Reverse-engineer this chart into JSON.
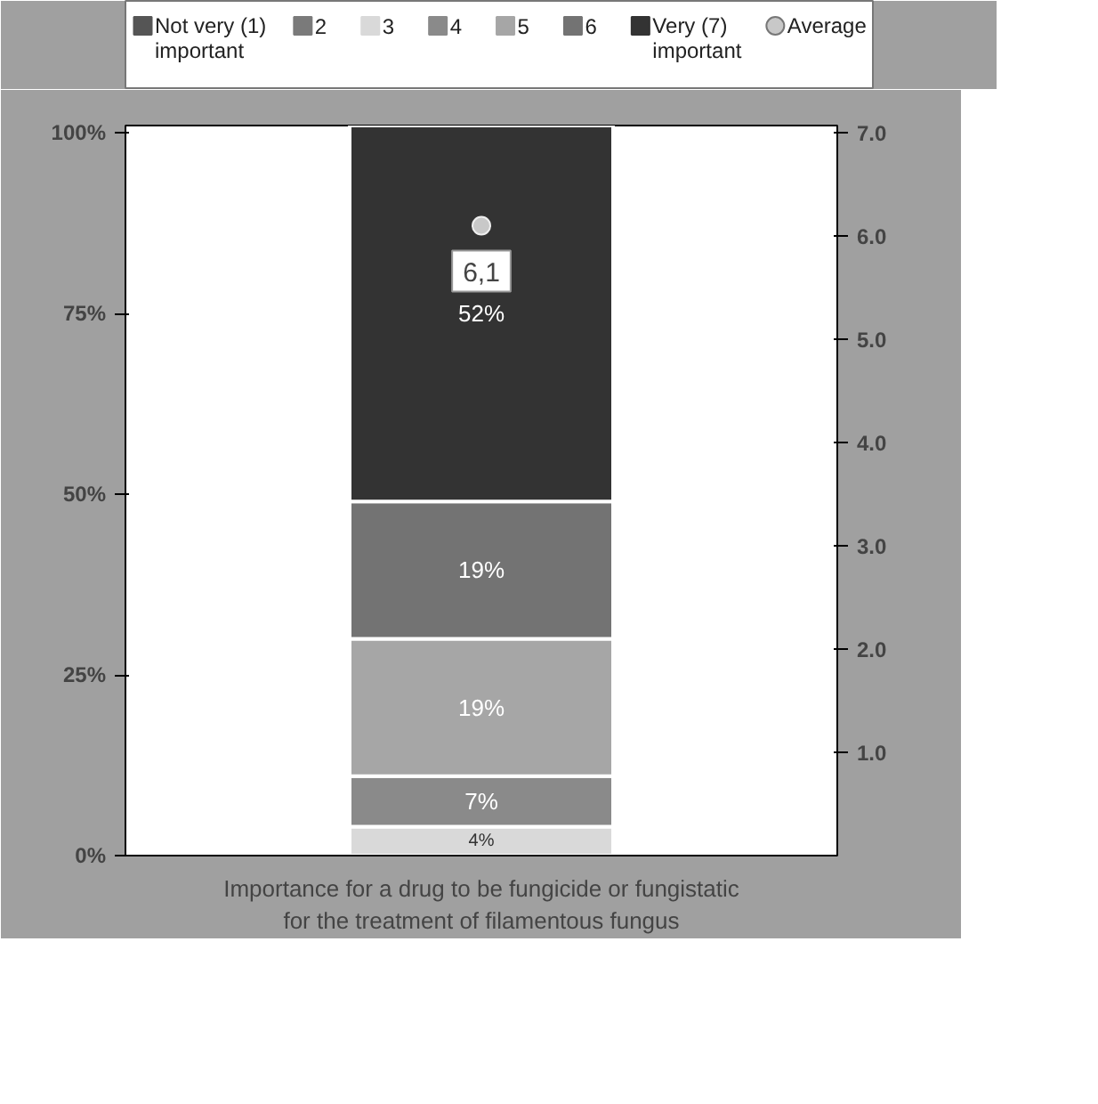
{
  "chart_data": {
    "type": "bar",
    "stacked": true,
    "categories": [
      null
    ],
    "xlabel": "Importance for a drug to be fungicide or fungistatic\nfor the treatment of filamentous fungus",
    "series": [
      {
        "name": "Not very (1) important",
        "color": "#555555",
        "values": [
          0
        ],
        "value_labels": [
          null
        ]
      },
      {
        "name": "2",
        "color": "#7a7a7a",
        "values": [
          0
        ],
        "value_labels": [
          null
        ]
      },
      {
        "name": "3",
        "color": "#d9d9d9",
        "values": [
          4
        ],
        "value_labels": [
          "4%"
        ]
      },
      {
        "name": "4",
        "color": "#8a8a8a",
        "values": [
          7
        ],
        "value_labels": [
          "7%"
        ]
      },
      {
        "name": "5",
        "color": "#a6a6a6",
        "values": [
          19
        ],
        "value_labels": [
          "19%"
        ]
      },
      {
        "name": "6",
        "color": "#737373",
        "values": [
          19
        ],
        "value_labels": [
          "19%"
        ]
      },
      {
        "name": "Very (7) important",
        "color": "#333333",
        "values": [
          52
        ],
        "value_labels": [
          "52%"
        ]
      },
      {
        "name": "Average",
        "type": "scatter",
        "axis": "y2",
        "marker": "circle",
        "color": "#c8c8c8",
        "values": [
          6.1
        ],
        "value_labels": [
          "6,1"
        ]
      }
    ],
    "ylim": [
      0,
      101
    ],
    "yticks": [
      {
        "value": 0,
        "label": "0%"
      },
      {
        "value": 25,
        "label": "25%"
      },
      {
        "value": 50,
        "label": "50%"
      },
      {
        "value": 75,
        "label": "75%"
      },
      {
        "value": 100,
        "label": "100%"
      }
    ],
    "y2lim": [
      0,
      7.07
    ],
    "y2ticks": [
      {
        "value": 1,
        "label": "1.0"
      },
      {
        "value": 2,
        "label": "2.0"
      },
      {
        "value": 3,
        "label": "3.0"
      },
      {
        "value": 4,
        "label": "4.0"
      },
      {
        "value": 5,
        "label": "5.0"
      },
      {
        "value": 6,
        "label": "6.0"
      },
      {
        "value": 7,
        "label": "7.0"
      }
    ],
    "legend": "top",
    "grid": false
  }
}
